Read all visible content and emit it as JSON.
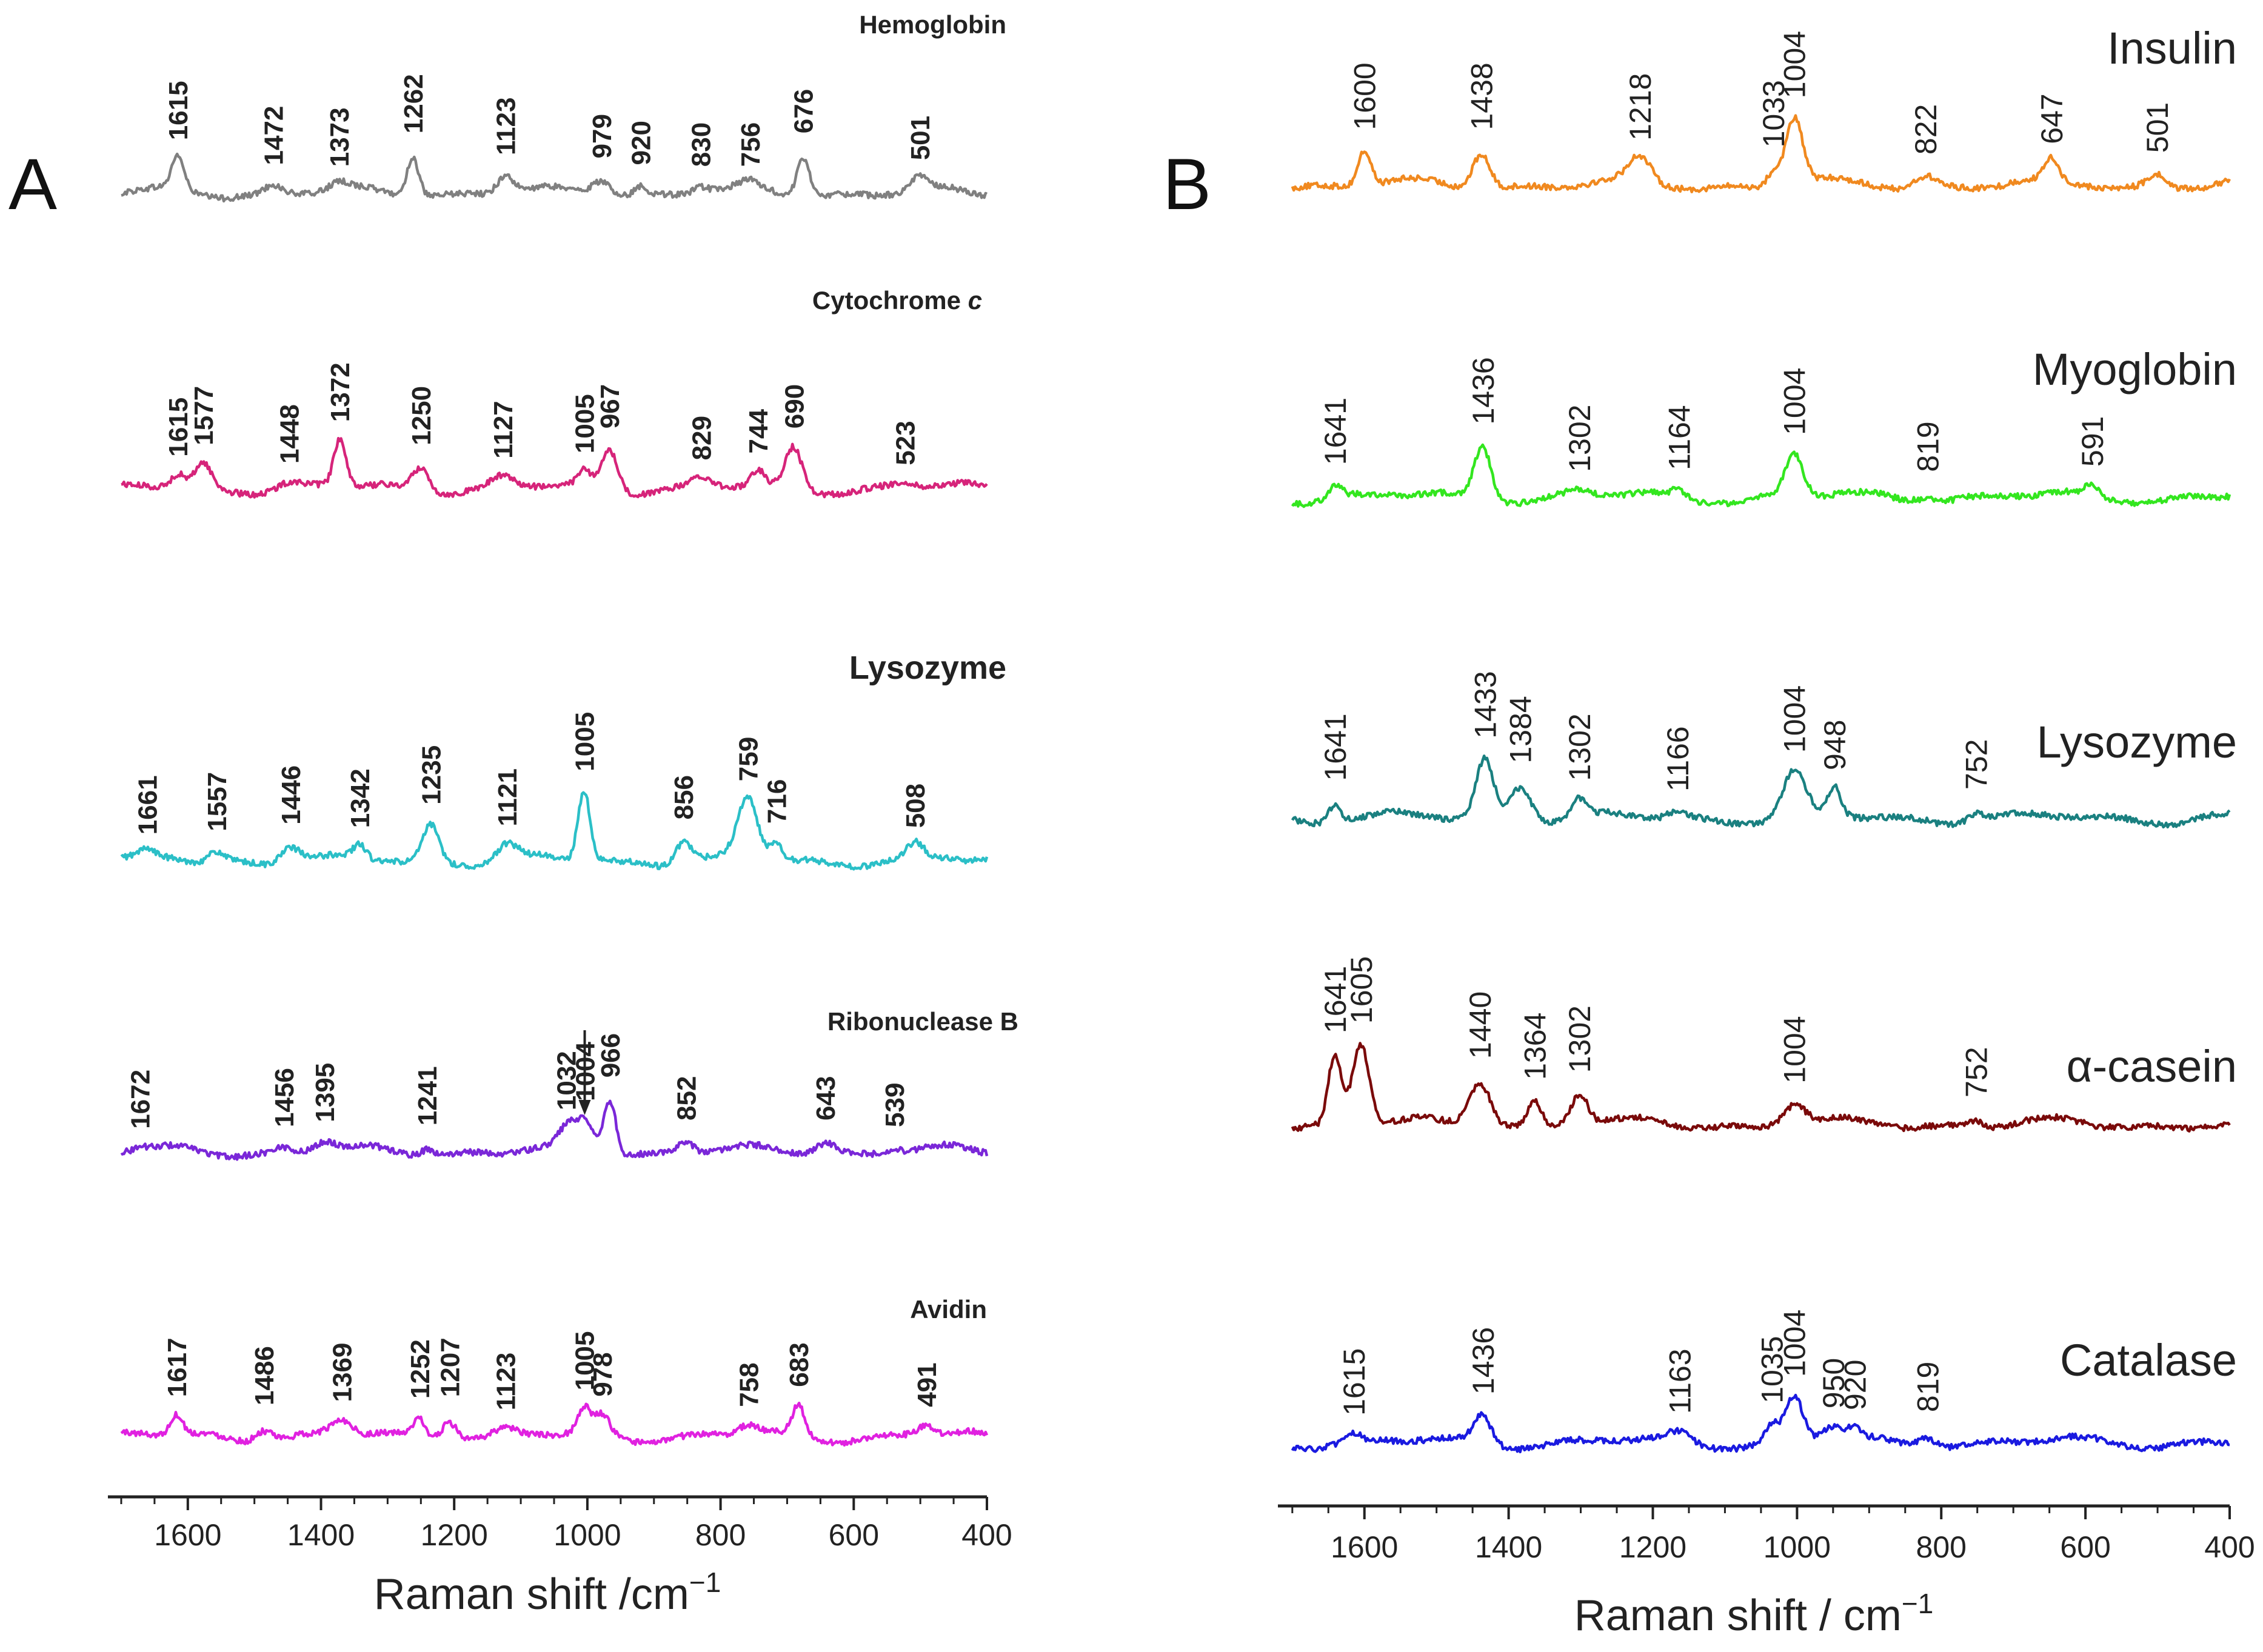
{
  "chart_data": [
    {
      "panel_label": "A",
      "type": "line",
      "xlabel": "Raman shift /cm",
      "xlabel_exponent": "−1",
      "xlim": [
        1720,
        400
      ],
      "xticks": [
        1600,
        1400,
        1200,
        1000,
        800,
        600,
        400
      ],
      "name_weight": "bold",
      "series": [
        {
          "name": "Hemoglobin",
          "color": "#808080",
          "peaks": [
            "1615",
            "1472",
            "1373",
            "1262",
            "1123",
            "979",
            "920",
            "830",
            "756",
            "676",
            "501"
          ],
          "peak_positions": [
            1615,
            1472,
            1373,
            1262,
            1123,
            979,
            920,
            830,
            756,
            676,
            501
          ],
          "heights": [
            1.0,
            0.25,
            0.2,
            1.2,
            0.55,
            0.45,
            0.25,
            0.2,
            0.2,
            1.2,
            0.4
          ]
        },
        {
          "name": "Cytochrome ",
          "name_italic": "c",
          "color": "#d6247a",
          "peaks": [
            "1615",
            "1577",
            "1448",
            "1372",
            "1250",
            "1127",
            "1005",
            "967",
            "829",
            "744",
            "690",
            "523"
          ],
          "peak_positions": [
            1615,
            1577,
            1448,
            1372,
            1250,
            1127,
            1005,
            967,
            829,
            744,
            690,
            523
          ],
          "heights": [
            0.35,
            0.7,
            0.15,
            1.4,
            0.7,
            0.3,
            0.45,
            1.2,
            0.25,
            0.45,
            1.2,
            0.1
          ]
        },
        {
          "name": "Lysozyme",
          "color": "#2bbfc7",
          "peaks": [
            "1661",
            "1557",
            "1446",
            "1342",
            "1235",
            "1121",
            "1005",
            "856",
            "759",
            "716",
            "508"
          ],
          "peak_positions": [
            1661,
            1557,
            1446,
            1342,
            1235,
            1121,
            1005,
            856,
            759,
            716,
            508
          ],
          "heights": [
            0.2,
            0.3,
            0.5,
            0.4,
            1.1,
            0.45,
            2.1,
            0.65,
            1.8,
            0.5,
            0.4
          ]
        },
        {
          "name": "Ribonuclease B",
          "color": "#7a27d8",
          "peaks": [
            "1672",
            "1456",
            "1395",
            "1241",
            "1032",
            "1004",
            "966",
            "852",
            "643",
            "539"
          ],
          "peak_positions": [
            1672,
            1456,
            1395,
            1241,
            1032,
            1004,
            966,
            852,
            643,
            539
          ],
          "heights": [
            0.1,
            0.15,
            0.3,
            0.2,
            0.5,
            0.9,
            1.6,
            0.35,
            0.35,
            0.15
          ]
        },
        {
          "name": "Avidin",
          "color": "#e021e0",
          "peaks": [
            "1617",
            "1486",
            "1369",
            "1252",
            "1207",
            "1123",
            "1005",
            "978",
            "758",
            "683",
            "491"
          ],
          "peak_positions": [
            1617,
            1486,
            1369,
            1252,
            1207,
            1123,
            1005,
            978,
            758,
            683,
            491
          ],
          "heights": [
            0.6,
            0.35,
            0.45,
            0.55,
            0.6,
            0.2,
            0.75,
            0.6,
            0.3,
            0.9,
            0.3
          ]
        }
      ]
    },
    {
      "panel_label": "B",
      "type": "line",
      "xlabel": "Raman shift / cm",
      "xlabel_exponent": "−1",
      "xlim": [
        1720,
        400
      ],
      "xticks": [
        1600,
        1400,
        1200,
        1000,
        800,
        600,
        400
      ],
      "name_weight": "normal",
      "series": [
        {
          "name": "Insulin",
          "color": "#f0891f",
          "peaks": [
            "1600",
            "1438",
            "1218",
            "1033",
            "1004",
            "822",
            "647",
            "501"
          ],
          "peak_positions": [
            1600,
            1438,
            1218,
            1033,
            1004,
            822,
            647,
            501
          ],
          "heights": [
            1.0,
            1.0,
            0.7,
            0.4,
            1.9,
            0.3,
            0.6,
            0.35
          ]
        },
        {
          "name": "Myoglobin",
          "color": "#33e61f",
          "peaks": [
            "1641",
            "1436",
            "1302",
            "1164",
            "1004",
            "819",
            "591"
          ],
          "peak_positions": [
            1641,
            1436,
            1302,
            1164,
            1004,
            819,
            591
          ],
          "heights": [
            0.35,
            1.5,
            0.15,
            0.2,
            1.2,
            0.15,
            0.3
          ]
        },
        {
          "name": "Lysozyme",
          "color": "#1a8080",
          "peaks": [
            "1641",
            "1433",
            "1384",
            "1302",
            "1166",
            "1004",
            "948",
            "752"
          ],
          "peak_positions": [
            1641,
            1433,
            1384,
            1302,
            1166,
            1004,
            948,
            752
          ],
          "heights": [
            0.5,
            1.7,
            1.0,
            0.5,
            0.2,
            1.3,
            0.8,
            0.25
          ]
        },
        {
          "name": "α-casein",
          "color": "#7a0a0a",
          "peaks": [
            "1641",
            "1605",
            "1440",
            "1364",
            "1302",
            "1004",
            "752"
          ],
          "peak_positions": [
            1641,
            1605,
            1440,
            1364,
            1302,
            1004,
            752
          ],
          "heights": [
            2.0,
            2.3,
            1.3,
            0.7,
            0.9,
            0.6,
            0.2
          ]
        },
        {
          "name": "Catalase",
          "color": "#1a1ae0",
          "peaks": [
            "1615",
            "1436",
            "1163",
            "1035",
            "1004",
            "950",
            "920",
            "819"
          ],
          "peak_positions": [
            1615,
            1436,
            1163,
            1035,
            1004,
            950,
            920,
            819
          ],
          "heights": [
            0.2,
            0.8,
            0.25,
            0.5,
            1.3,
            0.4,
            0.3,
            0.3
          ]
        }
      ]
    }
  ]
}
